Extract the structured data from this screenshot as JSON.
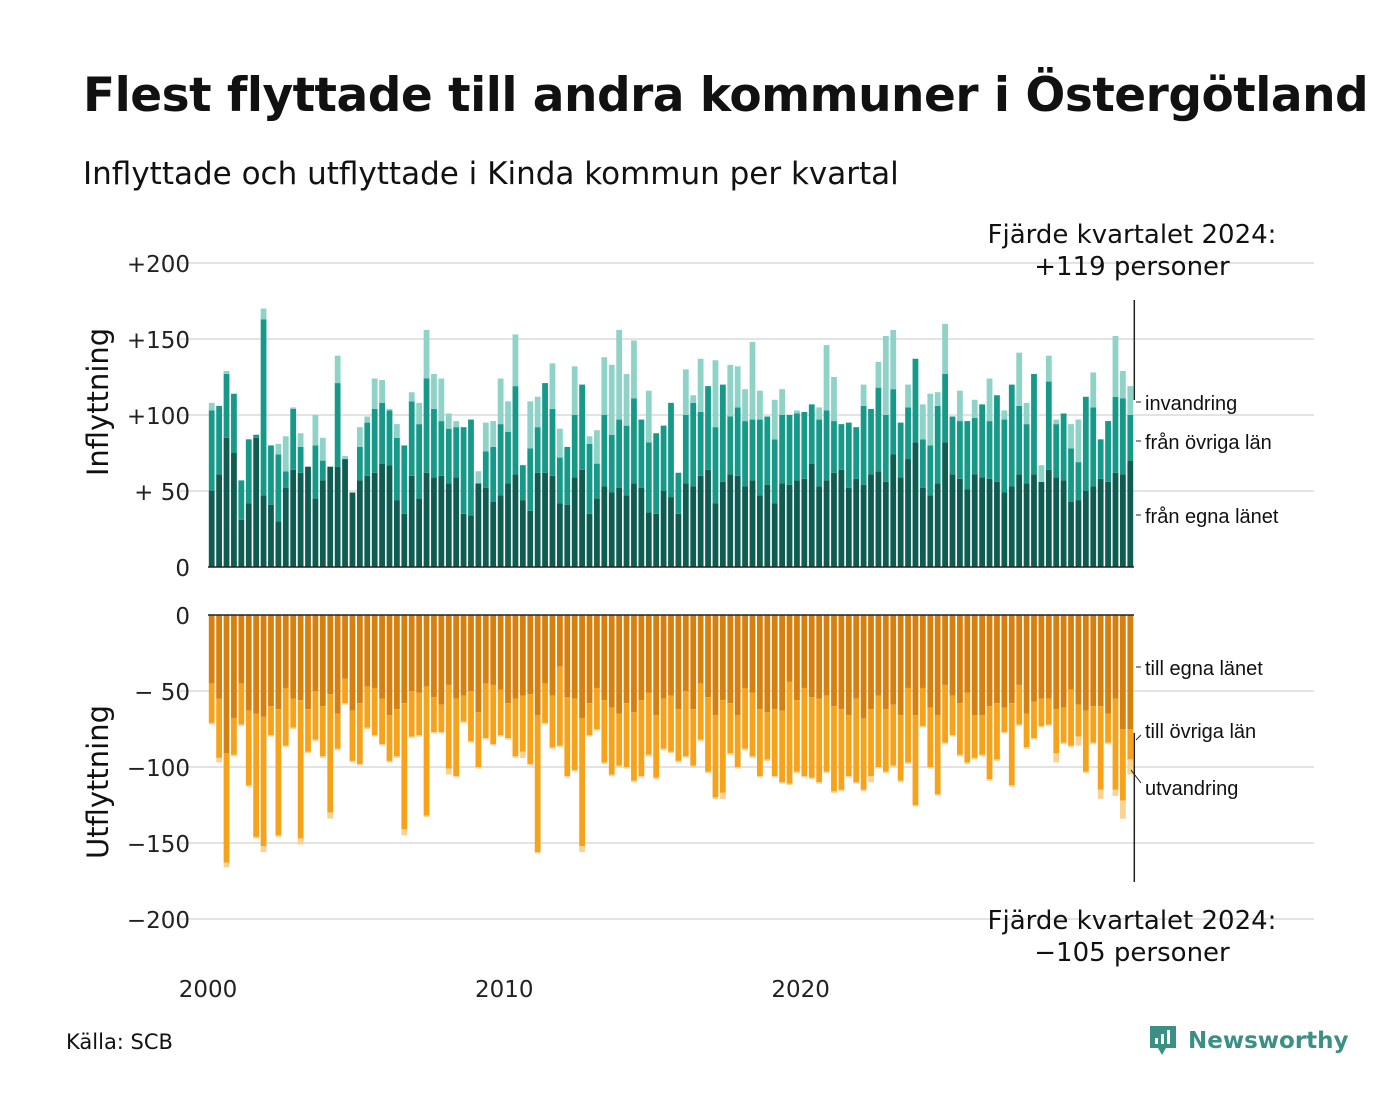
{
  "title": "Flest flyttade till andra kommuner i Östergötland",
  "subtitle": "Inflyttade och utflyttade i Kinda kommun per kvartal",
  "source": "Källa: SCB",
  "brand": "Newsworthy",
  "colors": {
    "in_egna": "#0f5c52",
    "in_ovriga": "#17998a",
    "in_invandring": "#8fd3c8",
    "out_egna": "#d68010",
    "out_ovriga": "#f7a21b",
    "out_utvandring": "#f9d391",
    "grid": "#e3e3e3",
    "brand": "#3b8f85"
  },
  "chart_data": [
    {
      "type": "bar",
      "stacked": true,
      "panel": "top",
      "ylabel": "Inflyttning",
      "ylim": [
        0,
        200
      ],
      "yticks": [
        0,
        50,
        100,
        150,
        200
      ],
      "ytick_labels": [
        "0",
        "+ 50",
        "+100",
        "+150",
        "+200"
      ],
      "x_start": "2000 Q1",
      "x_tick_labels": [
        "2000",
        "2010",
        "2020"
      ],
      "grid": true,
      "annotation": [
        "Fjärde kvartalet 2024:",
        "+119 personer"
      ],
      "series": [
        {
          "name": "från egna länet",
          "values": [
            50,
            61,
            85,
            75,
            31,
            42,
            85,
            47,
            41,
            30,
            52,
            64,
            62,
            66,
            45,
            57,
            66,
            66,
            71,
            49,
            57,
            60,
            62,
            68,
            67,
            44,
            35,
            60,
            45,
            62,
            59,
            60,
            55,
            59,
            35,
            34,
            55,
            52,
            43,
            47,
            55,
            61,
            44,
            37,
            62,
            62,
            60,
            42,
            41,
            59,
            64,
            35,
            45,
            53,
            49,
            52,
            47,
            55,
            52,
            36,
            35,
            50,
            46,
            35,
            55,
            53,
            60,
            64,
            42,
            56,
            61,
            60,
            53,
            57,
            47,
            54,
            42,
            55,
            54,
            57,
            58,
            68,
            53,
            57,
            62,
            64,
            52,
            58,
            54,
            61,
            63,
            56,
            74,
            59,
            71,
            82,
            52,
            47,
            55,
            82,
            61,
            58,
            51,
            61,
            59,
            58,
            56,
            49,
            53,
            61,
            55,
            61,
            56,
            64,
            59,
            57,
            43,
            44,
            50,
            53,
            58,
            56,
            62,
            61,
            70
          ]
        },
        {
          "name": "från övriga län",
          "values": [
            53,
            45,
            42,
            39,
            26,
            42,
            2,
            116,
            39,
            44,
            11,
            40,
            17,
            0,
            35,
            13,
            0,
            55,
            0,
            0,
            22,
            35,
            42,
            40,
            36,
            41,
            45,
            49,
            49,
            62,
            45,
            36,
            36,
            33,
            57,
            63,
            0,
            24,
            36,
            47,
            34,
            58,
            23,
            41,
            30,
            59,
            44,
            30,
            38,
            41,
            56,
            46,
            23,
            47,
            38,
            45,
            46,
            56,
            45,
            46,
            53,
            43,
            62,
            27,
            45,
            55,
            42,
            55,
            50,
            64,
            38,
            45,
            43,
            40,
            50,
            45,
            42,
            45,
            46,
            44,
            44,
            39,
            44,
            46,
            34,
            30,
            43,
            34,
            52,
            43,
            55,
            44,
            43,
            36,
            34,
            55,
            32,
            33,
            51,
            45,
            38,
            38,
            45,
            37,
            48,
            38,
            57,
            48,
            67,
            45,
            39,
            66,
            0,
            58,
            35,
            44,
            35,
            25,
            62,
            52,
            26,
            40,
            50,
            50,
            30
          ]
        },
        {
          "name": "invandring",
          "values": [
            5,
            0,
            2,
            0,
            0,
            0,
            0,
            7,
            0,
            7,
            23,
            1,
            9,
            0,
            20,
            15,
            0,
            18,
            2,
            0,
            13,
            4,
            20,
            15,
            1,
            9,
            0,
            6,
            14,
            32,
            23,
            28,
            10,
            4,
            0,
            0,
            8,
            19,
            17,
            30,
            20,
            34,
            0,
            31,
            20,
            0,
            30,
            19,
            0,
            32,
            0,
            5,
            22,
            38,
            46,
            59,
            34,
            38,
            0,
            34,
            0,
            0,
            0,
            0,
            30,
            5,
            35,
            0,
            44,
            0,
            34,
            27,
            21,
            51,
            19,
            0,
            26,
            17,
            0,
            2,
            0,
            0,
            8,
            43,
            29,
            0,
            0,
            0,
            14,
            0,
            17,
            52,
            39,
            0,
            15,
            0,
            23,
            34,
            9,
            33,
            0,
            20,
            0,
            12,
            0,
            28,
            0,
            6,
            0,
            35,
            14,
            0,
            11,
            17,
            3,
            0,
            16,
            28,
            0,
            23,
            0,
            0,
            40,
            18,
            19
          ]
        }
      ]
    },
    {
      "type": "bar",
      "stacked": true,
      "panel": "bottom",
      "ylabel": "Utflyttning",
      "ylim": [
        -200,
        0
      ],
      "yticks": [
        0,
        -50,
        -100,
        -150,
        -200
      ],
      "ytick_labels": [
        "0",
        "− 50",
        "−100",
        "−150",
        "−200"
      ],
      "x_start": "2000 Q1",
      "x_tick_labels": [
        "2000",
        "2010",
        "2020"
      ],
      "grid": true,
      "annotation": [
        "Fjärde kvartalet 2024:",
        "−105 personer"
      ],
      "series": [
        {
          "name": "till egna länet",
          "values": [
            -45,
            -55,
            -91,
            -68,
            -45,
            -63,
            -65,
            -67,
            -60,
            -62,
            -48,
            -55,
            -56,
            -62,
            -50,
            -60,
            -52,
            -65,
            -42,
            -63,
            -58,
            -47,
            -48,
            -55,
            -66,
            -62,
            -58,
            -50,
            -51,
            -47,
            -54,
            -59,
            -46,
            -55,
            -53,
            -50,
            -64,
            -45,
            -46,
            -49,
            -58,
            -55,
            -53,
            -52,
            -66,
            -45,
            -53,
            -34,
            -54,
            -55,
            -68,
            -58,
            -48,
            -56,
            -61,
            -65,
            -58,
            -64,
            -56,
            -51,
            -66,
            -55,
            -53,
            -62,
            -50,
            -62,
            -45,
            -54,
            -66,
            -56,
            -58,
            -66,
            -48,
            -51,
            -62,
            -64,
            -62,
            -63,
            -44,
            -56,
            -48,
            -54,
            -55,
            -53,
            -60,
            -62,
            -66,
            -55,
            -68,
            -62,
            -53,
            -62,
            -59,
            -66,
            -48,
            -66,
            -48,
            -61,
            -66,
            -46,
            -53,
            -58,
            -51,
            -66,
            -66,
            -60,
            -58,
            -61,
            -58,
            -46,
            -65,
            -57,
            -55,
            -55,
            -62,
            -61,
            -49,
            -59,
            -63,
            -60,
            -60,
            -65,
            -55,
            -75,
            -75
          ]
        },
        {
          "name": "till övriga län",
          "values": [
            -26,
            -39,
            -72,
            -24,
            -27,
            -49,
            -81,
            -85,
            -19,
            -83,
            -38,
            -19,
            -91,
            -28,
            -32,
            -33,
            -78,
            -23,
            -16,
            -33,
            -40,
            -27,
            -31,
            -30,
            -30,
            -31,
            -83,
            -30,
            -28,
            -85,
            -23,
            -18,
            -55,
            -51,
            -17,
            -33,
            -36,
            -36,
            -39,
            -30,
            -23,
            -38,
            -37,
            -46,
            -90,
            -26,
            -34,
            -52,
            -52,
            -47,
            -84,
            -21,
            -27,
            -41,
            -44,
            -34,
            -42,
            -45,
            -50,
            -41,
            -41,
            -33,
            -37,
            -34,
            -43,
            -37,
            -37,
            -49,
            -54,
            -61,
            -33,
            -34,
            -40,
            -42,
            -44,
            -31,
            -44,
            -47,
            -67,
            -47,
            -58,
            -53,
            -55,
            -50,
            -56,
            -53,
            -40,
            -55,
            -47,
            -44,
            -47,
            -41,
            -40,
            -43,
            -49,
            -59,
            -25,
            -39,
            -52,
            -38,
            -26,
            -34,
            -46,
            -28,
            -26,
            -48,
            -37,
            -16,
            -54,
            -26,
            -22,
            -24,
            -18,
            -17,
            -29,
            -23,
            -37,
            -21,
            -40,
            -24,
            -55,
            -19,
            -60,
            -47,
            -20
          ]
        },
        {
          "name": "utvandring",
          "values": [
            -1,
            -3,
            -3,
            -1,
            -1,
            -1,
            -1,
            -4,
            -1,
            -1,
            -1,
            -1,
            -4,
            -1,
            -1,
            -1,
            -4,
            -1,
            -1,
            -1,
            -1,
            -1,
            -1,
            -1,
            -1,
            -1,
            -4,
            -1,
            -1,
            -1,
            -1,
            -1,
            -4,
            -1,
            -1,
            -1,
            -1,
            -1,
            -1,
            -1,
            -1,
            -1,
            -4,
            -1,
            -1,
            -1,
            -1,
            -1,
            -1,
            -1,
            -4,
            -1,
            -1,
            -1,
            -1,
            -1,
            -1,
            -1,
            -1,
            -1,
            -1,
            -1,
            -1,
            -1,
            -1,
            -1,
            -1,
            -1,
            -1,
            -4,
            -1,
            -1,
            -1,
            -1,
            -1,
            -1,
            -1,
            -1,
            -1,
            -1,
            -1,
            -1,
            -1,
            -1,
            -1,
            -1,
            -1,
            -1,
            -1,
            -4,
            -1,
            -1,
            -1,
            -1,
            -1,
            -1,
            -1,
            -1,
            -1,
            -1,
            -1,
            -1,
            -1,
            -1,
            -1,
            -1,
            -1,
            -1,
            -1,
            -1,
            -1,
            -1,
            -1,
            -1,
            -6,
            -1,
            -1,
            -6,
            -1,
            -1,
            -6,
            -1,
            -4,
            -12,
            -10
          ]
        }
      ]
    }
  ]
}
